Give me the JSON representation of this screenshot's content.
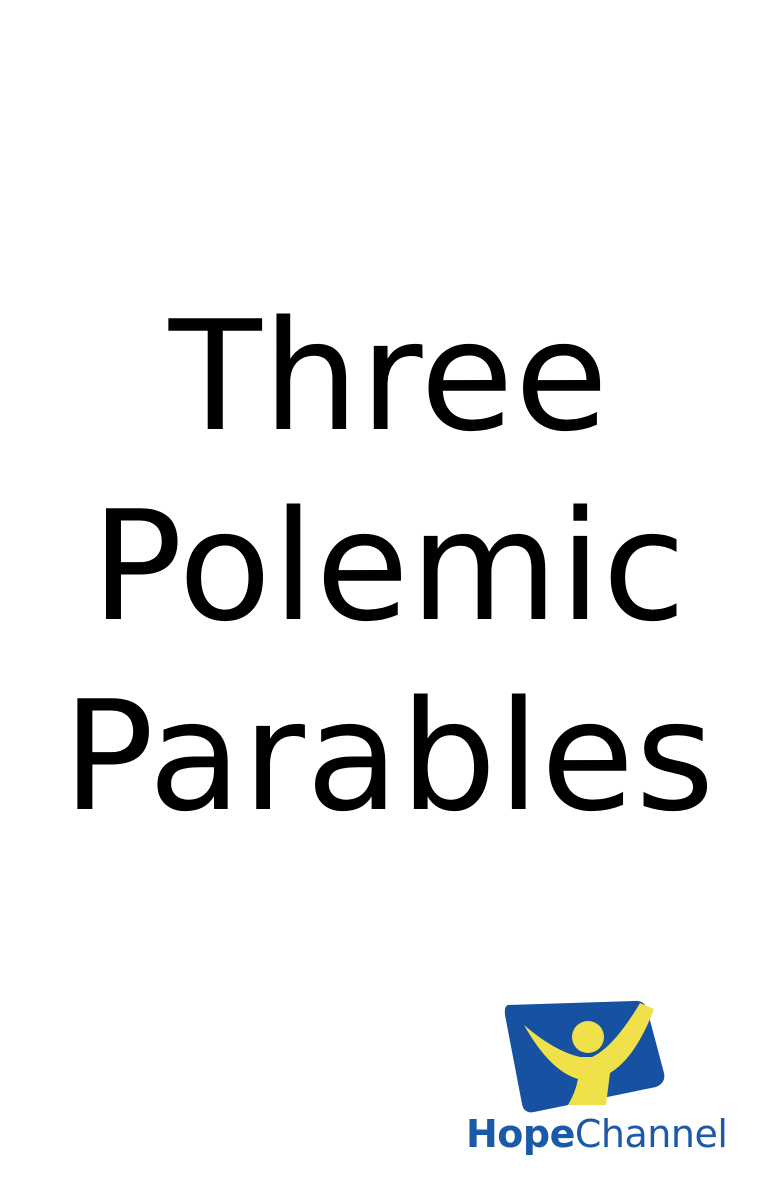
{
  "title": {
    "lines": [
      "Three",
      "Polemic",
      "Parables"
    ]
  },
  "logo": {
    "word_hope": "Hope",
    "word_channel": "Channel",
    "icon": "hope-channel-figure-icon",
    "colors": {
      "blue": "#1751a1",
      "yellow": "#f0e14a",
      "text": "#1b5aa6"
    }
  }
}
